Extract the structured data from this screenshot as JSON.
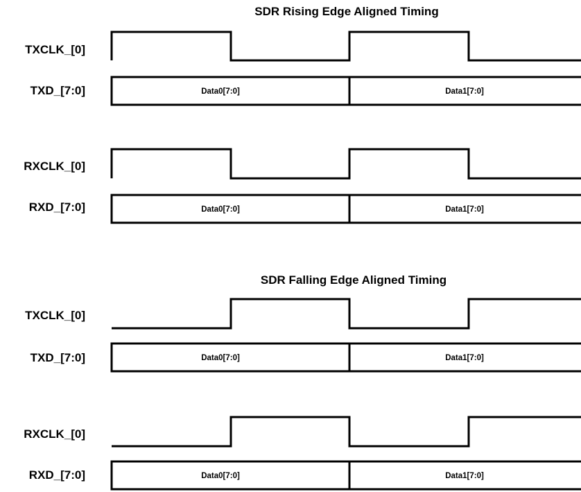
{
  "sections": [
    {
      "title": "SDR Rising Edge Aligned Timing",
      "rows": [
        {
          "kind": "clock",
          "label": "TXCLK_[0]",
          "levels": [
            1,
            0,
            1,
            0
          ]
        },
        {
          "kind": "data",
          "label": "TXD_[7:0]",
          "cells": [
            "Data0[7:0]",
            "Data1[7:0]"
          ]
        },
        {
          "kind": "clock",
          "label": "RXCLK_[0]",
          "levels": [
            1,
            0,
            1,
            0
          ]
        },
        {
          "kind": "data",
          "label": "RXD_[7:0]",
          "cells": [
            "Data0[7:0]",
            "Data1[7:0]"
          ]
        }
      ]
    },
    {
      "title": "SDR Falling Edge Aligned Timing",
      "rows": [
        {
          "kind": "clock",
          "label": "TXCLK_[0]",
          "levels": [
            0,
            1,
            0,
            1
          ]
        },
        {
          "kind": "data",
          "label": "TXD_[7:0]",
          "cells": [
            "Data0[7:0]",
            "Data1[7:0]"
          ]
        },
        {
          "kind": "clock",
          "label": "RXCLK_[0]",
          "levels": [
            0,
            1,
            0,
            1
          ]
        },
        {
          "kind": "data",
          "label": "RXD_[7:0]",
          "cells": [
            "Data0[7:0]",
            "Data1[7:0]"
          ]
        }
      ]
    }
  ]
}
